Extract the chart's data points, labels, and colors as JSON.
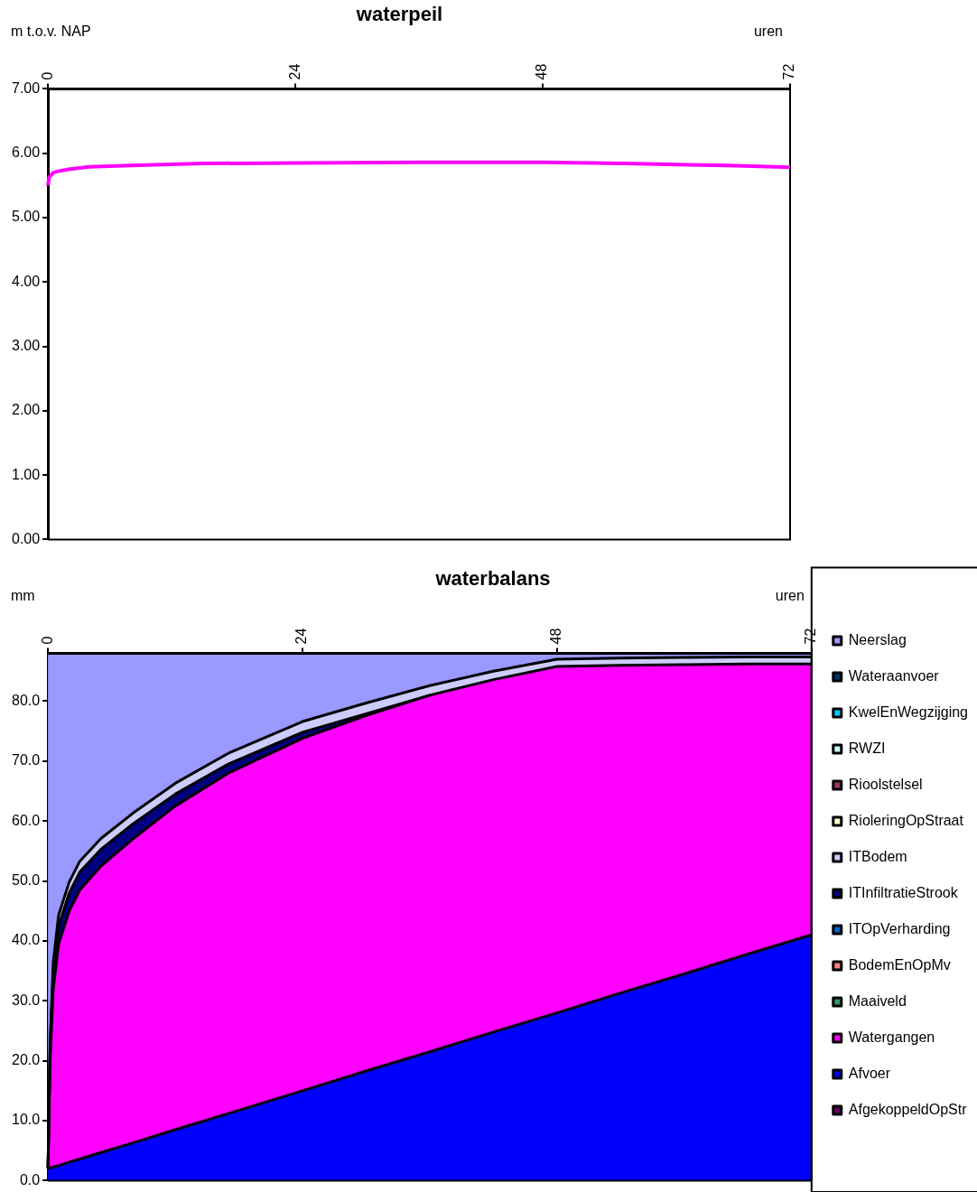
{
  "chart_data": [
    {
      "type": "line",
      "title": "waterpeil",
      "ylabel": "m t.o.v. NAP",
      "xlabel": "uren",
      "x": [
        0,
        0.1,
        0.5,
        1,
        2,
        4,
        8,
        15,
        24,
        36,
        48,
        56,
        66,
        72
      ],
      "xlim": [
        0,
        72
      ],
      "xticks": [
        0,
        24,
        48,
        72
      ],
      "ylim": [
        0,
        7
      ],
      "yticks": [
        {
          "value": 0,
          "label": "0.00"
        },
        {
          "value": 1,
          "label": "1.00"
        },
        {
          "value": 2,
          "label": "2.00"
        },
        {
          "value": 3,
          "label": "3.00"
        },
        {
          "value": 4,
          "label": "4.00"
        },
        {
          "value": 5,
          "label": "5.00"
        },
        {
          "value": 6,
          "label": "6.00"
        },
        {
          "value": 7,
          "label": "7.00"
        }
      ],
      "series": [
        {
          "color": "#ff00ff",
          "values": [
            5.5,
            5.62,
            5.7,
            5.72,
            5.75,
            5.79,
            5.81,
            5.84,
            5.85,
            5.86,
            5.86,
            5.84,
            5.81,
            5.78
          ]
        }
      ],
      "legend": false
    },
    {
      "type": "area",
      "stacked": true,
      "title": "waterbalans",
      "ylabel": "mm",
      "xlabel": "uren",
      "x": [
        0,
        0.2,
        0.5,
        1,
        2,
        3,
        5,
        8,
        12,
        17,
        24,
        30,
        36,
        42,
        48,
        54,
        60,
        66,
        72
      ],
      "xlim": [
        0,
        72
      ],
      "xticks": [
        0,
        24,
        48,
        72
      ],
      "ylim": [
        0,
        88
      ],
      "yticks": [
        {
          "value": 0,
          "label": "0.0"
        },
        {
          "value": 10,
          "label": "10.0"
        },
        {
          "value": 20,
          "label": "20.0"
        },
        {
          "value": 30,
          "label": "30.0"
        },
        {
          "value": 40,
          "label": "40.0"
        },
        {
          "value": 50,
          "label": "50.0"
        },
        {
          "value": 60,
          "label": "60.0"
        },
        {
          "value": 70,
          "label": "70.0"
        },
        {
          "value": 80,
          "label": "80.0"
        }
      ],
      "series": [
        {
          "name": "AfgekoppeldOpStr",
          "color": "#660066",
          "values": [
            null,
            null,
            null,
            null,
            null,
            null,
            null,
            null,
            null,
            null,
            null,
            null,
            null,
            null,
            null,
            null,
            null,
            null,
            null
          ]
        },
        {
          "name": "Afvoer",
          "color": "#0000ff",
          "values": [
            2,
            2.1,
            2.3,
            2.5,
            3.1,
            3.6,
            4.7,
            6.3,
            8.5,
            11.2,
            15,
            18.3,
            21.5,
            24.8,
            28,
            31.3,
            34.5,
            37.8,
            41
          ]
        },
        {
          "name": "Watergangen",
          "color": "#ff00ff",
          "values": [
            0,
            17.9,
            29.7,
            37,
            41.9,
            44.9,
            47.8,
            50.7,
            54,
            56.8,
            58.8,
            59.3,
            59.5,
            58.8,
            57.8,
            54.7,
            51.6,
            48.4,
            45.2
          ]
        },
        {
          "name": "Maaiveld",
          "color": "#339966",
          "values": [
            null,
            null,
            null,
            null,
            null,
            null,
            null,
            null,
            null,
            null,
            null,
            null,
            null,
            null,
            null,
            null,
            null,
            null,
            null
          ]
        },
        {
          "name": "BodemEnOpMv",
          "color": "#ff8080",
          "values": [
            null,
            null,
            null,
            null,
            null,
            null,
            null,
            null,
            null,
            null,
            null,
            null,
            null,
            null,
            null,
            null,
            null,
            null,
            null
          ]
        },
        {
          "name": "ITOpVerharding",
          "color": "#0066cc",
          "values": [
            null,
            null,
            null,
            null,
            null,
            null,
            null,
            null,
            null,
            null,
            null,
            null,
            null,
            null,
            null,
            null,
            null,
            null,
            null
          ]
        },
        {
          "name": "ITInfiltratieStrook",
          "color": "#000080",
          "values": [
            0,
            2,
            3,
            3,
            3,
            3,
            2.8,
            2.5,
            2,
            1.5,
            1,
            0.3,
            0,
            null,
            null,
            null,
            null,
            null,
            null
          ]
        },
        {
          "name": "ITBodem",
          "color": "#ccccff",
          "values": [
            0,
            1,
            1.5,
            1.8,
            1.8,
            1.8,
            1.8,
            1.8,
            1.8,
            1.8,
            1.8,
            1.8,
            1.6,
            1.4,
            1.2,
            1.2,
            1.2,
            1.2,
            1.2
          ]
        },
        {
          "name": "RioleringOpStraat",
          "color": "#ffffcc",
          "values": [
            null,
            null,
            null,
            null,
            null,
            null,
            null,
            null,
            null,
            null,
            null,
            null,
            null,
            null,
            null,
            null,
            null,
            null,
            null
          ]
        },
        {
          "name": "Rioolstelsel",
          "color": "#993366",
          "values": [
            null,
            null,
            null,
            null,
            null,
            null,
            null,
            null,
            null,
            null,
            null,
            null,
            null,
            null,
            null,
            null,
            null,
            null,
            null
          ]
        },
        {
          "name": "RWZI",
          "color": "#ccffff",
          "values": [
            null,
            null,
            null,
            null,
            null,
            null,
            null,
            null,
            null,
            null,
            null,
            null,
            null,
            null,
            null,
            null,
            null,
            null,
            null
          ]
        },
        {
          "name": "KwelEnWegzijging",
          "color": "#00ccff",
          "values": [
            null,
            null,
            null,
            null,
            null,
            null,
            null,
            null,
            null,
            null,
            null,
            null,
            null,
            null,
            null,
            null,
            null,
            null,
            null
          ]
        },
        {
          "name": "Wateraanvoer",
          "color": "#003366",
          "values": [
            null,
            null,
            null,
            null,
            null,
            null,
            null,
            null,
            null,
            null,
            null,
            null,
            null,
            null,
            null,
            null,
            null,
            null,
            null
          ]
        },
        {
          "name": "Neerslag",
          "color": "#9999ff",
          "values": [
            86,
            65,
            51.5,
            43.7,
            38.2,
            34.7,
            30.9,
            26.7,
            21.7,
            16.7,
            11.4,
            8.3,
            5.4,
            3,
            1,
            0.8,
            0.7,
            0.6,
            0.6
          ]
        }
      ],
      "legend": "right"
    }
  ]
}
